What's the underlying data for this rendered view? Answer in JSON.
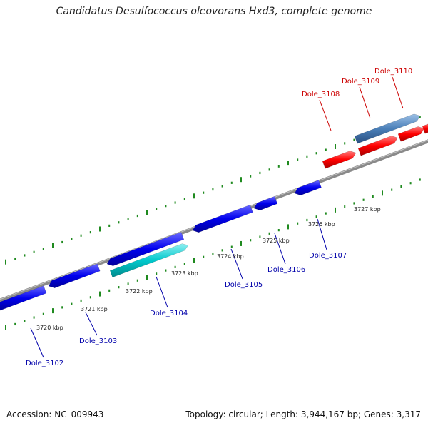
{
  "title": "Candidatus Desulfococcus oleovorans Hxd3, complete genome",
  "footer": {
    "accession": "Accession: NC_009943",
    "stats": "Topology: circular; Length: 3,944,167 bp; Genes: 3,317"
  },
  "colors": {
    "backbone": "#8a8a8a",
    "tick": "#1f8a1f",
    "forward_gene": "#ff0000",
    "reverse_gene": "#0000ee",
    "reverse_gene_alt": "#00c8cc",
    "forward_gene_alt": "#4a7fb8",
    "label_forward": "#cc0000",
    "label_reverse": "#0000aa"
  },
  "kbp_labels": [
    "3720 kbp",
    "3721 kbp",
    "3722 kbp",
    "3723 kbp",
    "3724 kbp",
    "3725 kbp",
    "3726 kbp",
    "3727 kbp"
  ],
  "gene_labels": [
    {
      "text": "Dole_3102",
      "strand": "reverse"
    },
    {
      "text": "Dole_3103",
      "strand": "reverse"
    },
    {
      "text": "Dole_3104",
      "strand": "reverse"
    },
    {
      "text": "Dole_3105",
      "strand": "reverse"
    },
    {
      "text": "Dole_3106",
      "strand": "reverse"
    },
    {
      "text": "Dole_3107",
      "strand": "reverse"
    },
    {
      "text": "Dole_3108",
      "strand": "forward"
    },
    {
      "text": "Dole_3109",
      "strand": "forward"
    },
    {
      "text": "Dole_3110",
      "strand": "forward"
    }
  ]
}
